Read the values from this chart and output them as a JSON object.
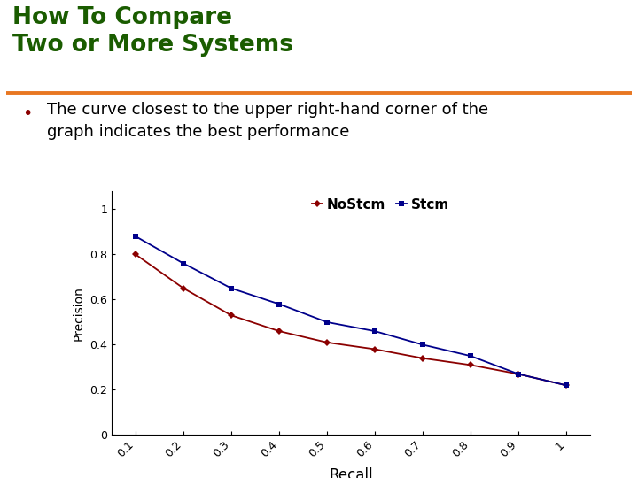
{
  "title_line1": "How To Compare",
  "title_line2": "Two or More Systems",
  "title_color": "#1a5c00",
  "separator_color": "#e87722",
  "bullet_color": "#8b0000",
  "bullet_text_line1": "The curve closest to the upper right-hand corner of the",
  "bullet_text_line2": "graph indicates the best performance",
  "nostcm_recall": [
    0.1,
    0.2,
    0.3,
    0.4,
    0.5,
    0.6,
    0.7,
    0.8,
    0.9,
    1.0
  ],
  "nostcm_precision": [
    0.8,
    0.65,
    0.53,
    0.46,
    0.41,
    0.38,
    0.34,
    0.31,
    0.27,
    0.22
  ],
  "stcm_recall": [
    0.1,
    0.2,
    0.3,
    0.4,
    0.5,
    0.6,
    0.7,
    0.8,
    0.9,
    1.0
  ],
  "stcm_precision": [
    0.88,
    0.76,
    0.65,
    0.58,
    0.5,
    0.46,
    0.4,
    0.35,
    0.27,
    0.22
  ],
  "nostcm_color": "#8b0000",
  "stcm_color": "#00008b",
  "xlabel": "Recall",
  "ylabel": "Precision",
  "ytick_labels": [
    "0",
    "0.2",
    "0.4",
    "0.6",
    "0.8",
    "1"
  ],
  "ytick_values": [
    0,
    0.2,
    0.4,
    0.6,
    0.8,
    1.0
  ],
  "xtick_labels": [
    "0.1",
    "0.2",
    "0.3",
    "0.4",
    "0.5",
    "0.6",
    "0.7",
    "0.8",
    "0.9",
    "1"
  ],
  "xtick_values": [
    0.1,
    0.2,
    0.3,
    0.4,
    0.5,
    0.6,
    0.7,
    0.8,
    0.9,
    1.0
  ],
  "legend_nostcm": "NoStcm",
  "legend_stcm": "Stcm"
}
